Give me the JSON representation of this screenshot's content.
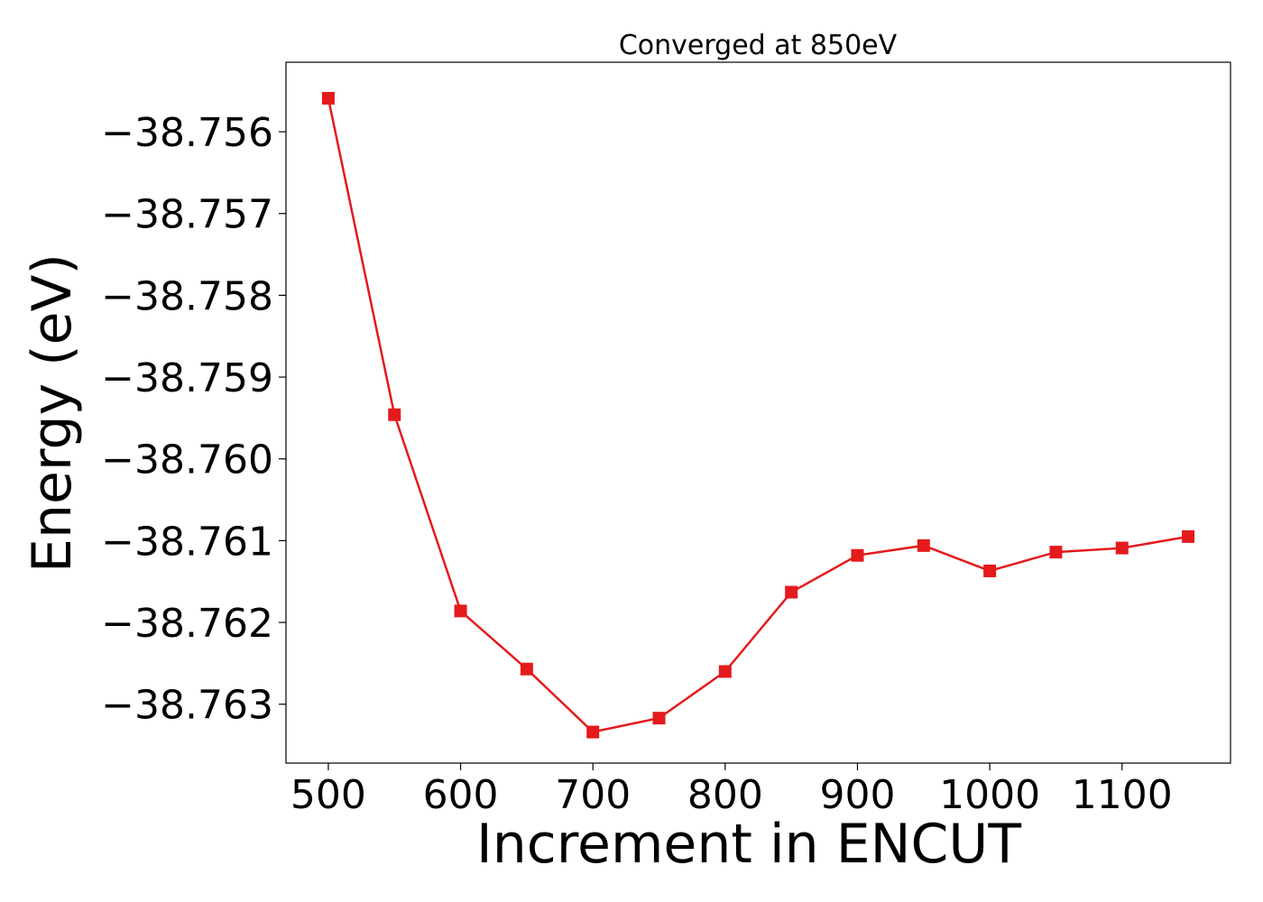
{
  "chart_data": {
    "type": "line",
    "title": "Converged at 850eV",
    "xlabel": "Increment in ENCUT",
    "ylabel": "Energy (eV)",
    "xlim": [
      468,
      1182
    ],
    "ylim": [
      -38.76372,
      -38.75515
    ],
    "x_ticks": [
      500,
      600,
      700,
      800,
      900,
      1000,
      1100
    ],
    "y_ticks": [
      -38.756,
      -38.757,
      -38.758,
      -38.759,
      -38.76,
      -38.761,
      -38.762,
      -38.763
    ],
    "x_tick_labels": [
      "500",
      "600",
      "700",
      "800",
      "900",
      "1000",
      "1100"
    ],
    "y_tick_labels": [
      "−38.756",
      "−38.757",
      "−38.758",
      "−38.759",
      "−38.760",
      "−38.761",
      "−38.762",
      "−38.763"
    ],
    "grid": false,
    "legend": "none",
    "marker": "square",
    "color": "#e41a1c",
    "series": [
      {
        "x": [
          500,
          550,
          600,
          650,
          700,
          750,
          800,
          850,
          900,
          950,
          1000,
          1050,
          1100,
          1150
        ],
        "values": [
          -38.75559,
          -38.75946,
          -38.76186,
          -38.76257,
          -38.76334,
          -38.76317,
          -38.7626,
          -38.76163,
          -38.76118,
          -38.76106,
          -38.76137,
          -38.76114,
          -38.76109,
          -38.76095
        ]
      }
    ]
  }
}
